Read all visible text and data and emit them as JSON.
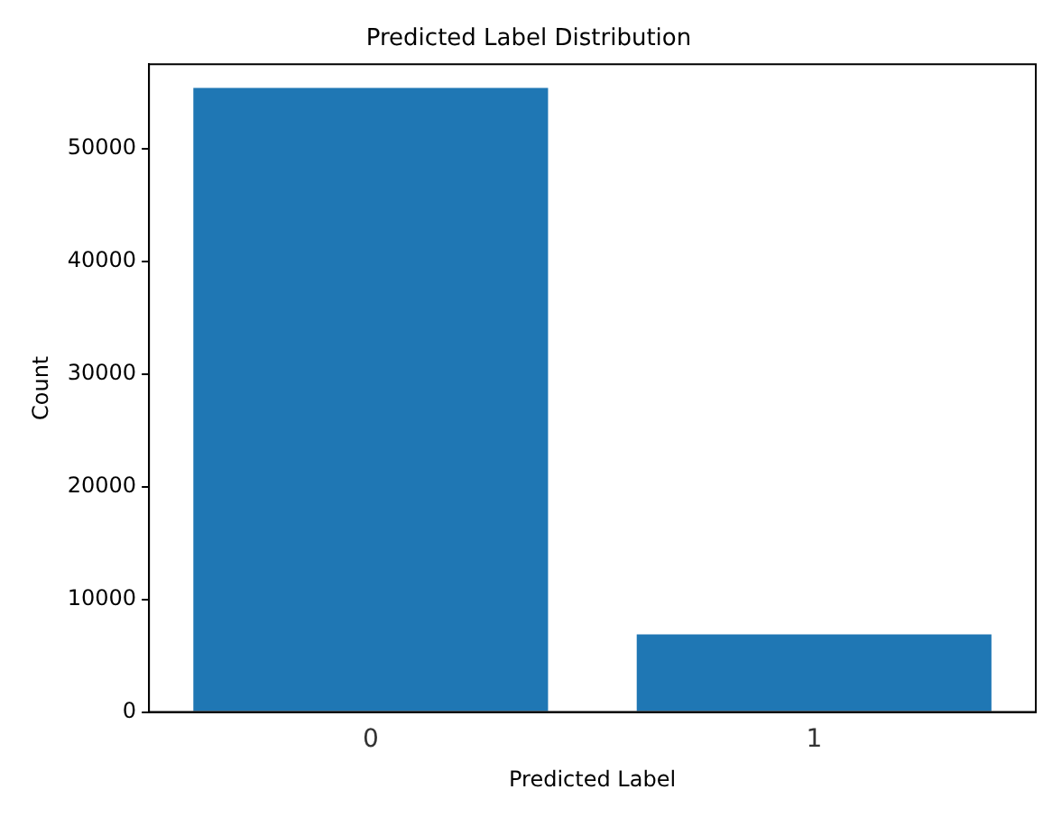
{
  "chart_data": {
    "type": "bar",
    "title": "Predicted Label Distribution",
    "xlabel": "Predicted Label",
    "ylabel": "Count",
    "categories": [
      "0",
      "1"
    ],
    "values": [
      55400,
      6900
    ],
    "color": "#1f77b4",
    "ylim": [
      0,
      57500
    ],
    "yticks": [
      0,
      10000,
      20000,
      30000,
      40000,
      50000
    ],
    "grid": false
  }
}
